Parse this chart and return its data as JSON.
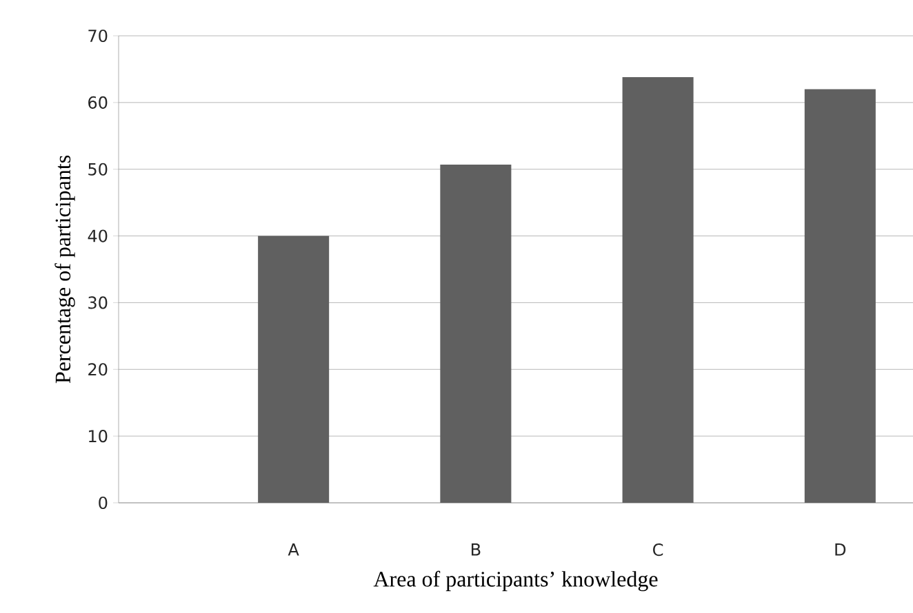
{
  "chart_data": {
    "type": "bar",
    "xlabel": "Area of participants’ knowledge",
    "ylabel": "Percentage of participants",
    "categories": [
      "A",
      "B",
      "C",
      "D"
    ],
    "values": [
      40,
      50.7,
      63.8,
      62
    ],
    "color": "#606060",
    "ylim": [
      0,
      70
    ],
    "yticks": [
      0,
      10,
      20,
      30,
      40,
      50,
      60,
      70
    ],
    "grid": "y"
  }
}
